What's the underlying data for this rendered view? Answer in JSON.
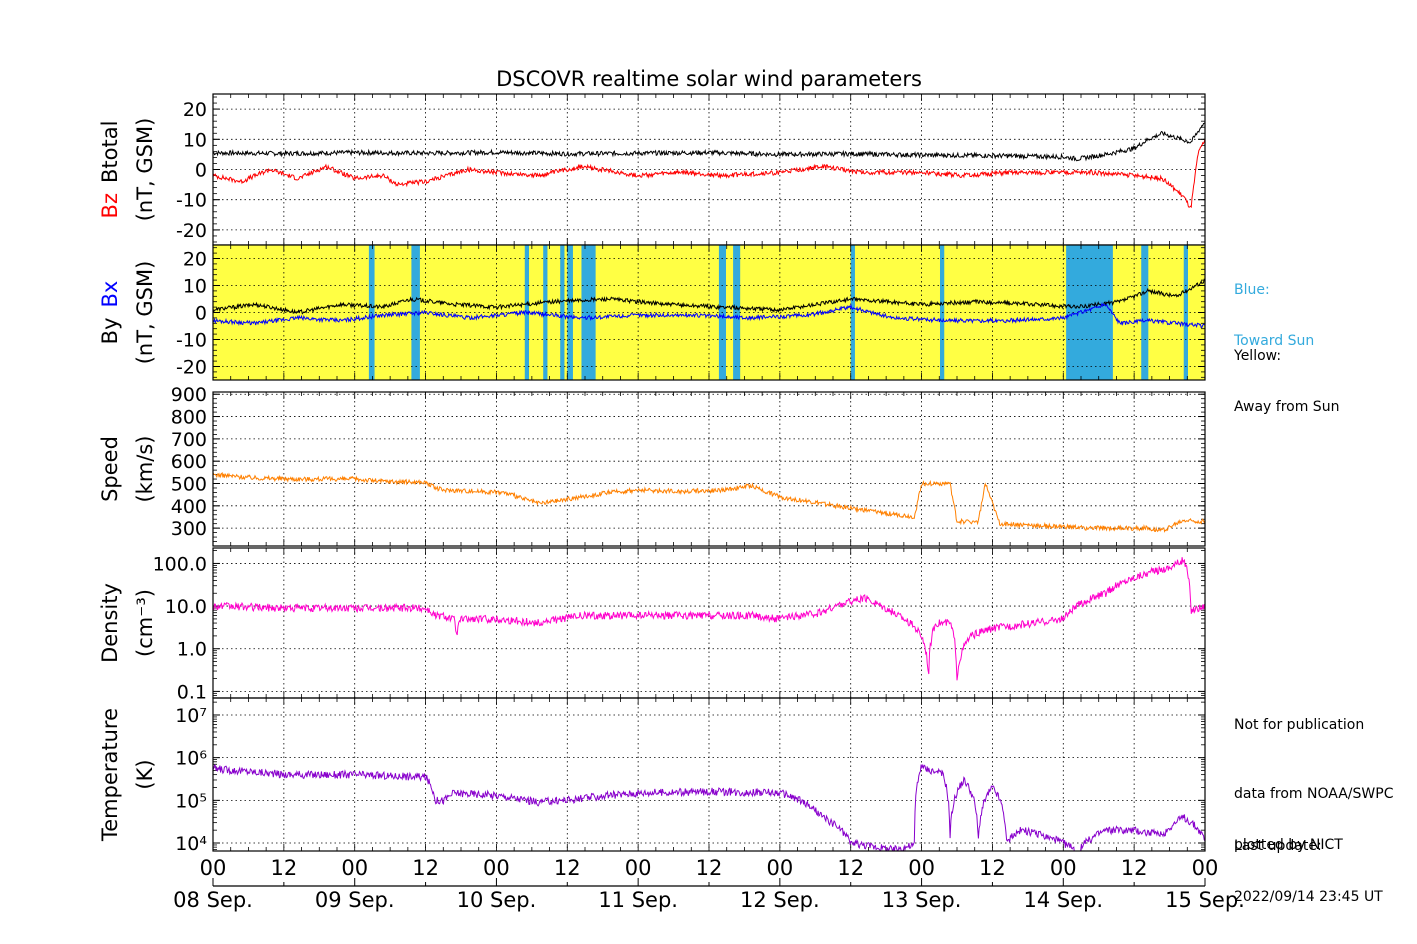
{
  "title": "DSCOVR realtime solar wind parameters",
  "colors": {
    "bz": "#ff0000",
    "btotal": "#000000",
    "bx": "#0000ff",
    "by": "#000000",
    "speed": "#ff8000",
    "density": "#ff00cc",
    "temperature": "#8800cc",
    "toward_sun": "#33aadd",
    "away_from_sun": "#ffff44"
  },
  "x_tick_labels": [
    "00",
    "12",
    "00",
    "12",
    "00",
    "12",
    "00",
    "12",
    "00",
    "12",
    "00",
    "12",
    "00",
    "12",
    "00"
  ],
  "date_labels": [
    "08 Sep.",
    "09 Sep.",
    "10 Sep.",
    "11 Sep.",
    "12 Sep.",
    "13 Sep.",
    "14 Sep.",
    "15 Sep."
  ],
  "legend": {
    "toward": [
      "Blue:",
      "Toward Sun"
    ],
    "away": [
      "Yellow:",
      "Away from Sun"
    ]
  },
  "notes": {
    "not_for_publication": "Not for publication",
    "source_1": "data from NOAA/SWPC",
    "source_2": "plotted by NICT",
    "update_label": "Last update:",
    "update_time": "2022/09/14 23:45 UT"
  },
  "chart_data": [
    {
      "type": "line",
      "panel": "magnetic field magnitude",
      "ylabel": [
        "Bz",
        "Btotal",
        "(nT, GSM)"
      ],
      "ylim": [
        -25,
        25
      ],
      "y_ticks": [
        -20,
        -10,
        0,
        10,
        20
      ],
      "x_unit": "days since 08 Sep. 00 UT",
      "xlim": [
        0,
        7
      ],
      "series": [
        {
          "name": "Btotal",
          "color": "#000000",
          "points": [
            [
              0,
              5.5
            ],
            [
              0.5,
              5.3
            ],
            [
              1,
              5.6
            ],
            [
              1.5,
              5.4
            ],
            [
              2,
              5.7
            ],
            [
              2.5,
              5.2
            ],
            [
              3,
              5.4
            ],
            [
              3.5,
              5.6
            ],
            [
              4,
              5.0
            ],
            [
              4.5,
              5.2
            ],
            [
              5,
              4.8
            ],
            [
              5.5,
              4.6
            ],
            [
              6,
              4.2
            ],
            [
              6.1,
              3.5
            ],
            [
              6.3,
              5
            ],
            [
              6.5,
              7
            ],
            [
              6.6,
              10
            ],
            [
              6.7,
              12
            ],
            [
              6.9,
              9
            ],
            [
              7,
              16
            ]
          ]
        },
        {
          "name": "Bz",
          "color": "#ff0000",
          "points": [
            [
              0,
              -2
            ],
            [
              0.2,
              -4
            ],
            [
              0.4,
              0
            ],
            [
              0.6,
              -3
            ],
            [
              0.8,
              1
            ],
            [
              1,
              -3
            ],
            [
              1.2,
              -2
            ],
            [
              1.3,
              -5
            ],
            [
              1.5,
              -4
            ],
            [
              1.8,
              0
            ],
            [
              2,
              -1
            ],
            [
              2.3,
              -2
            ],
            [
              2.6,
              1
            ],
            [
              3,
              -2
            ],
            [
              3.3,
              -1
            ],
            [
              3.6,
              -2
            ],
            [
              4,
              -1
            ],
            [
              4.3,
              1
            ],
            [
              4.6,
              -1
            ],
            [
              5,
              -1
            ],
            [
              5.3,
              -2
            ],
            [
              5.6,
              -1
            ],
            [
              6,
              -1
            ],
            [
              6.2,
              -1
            ],
            [
              6.5,
              -2
            ],
            [
              6.7,
              -3
            ],
            [
              6.85,
              -9
            ],
            [
              6.9,
              -13
            ],
            [
              6.95,
              5
            ],
            [
              7,
              10
            ]
          ]
        }
      ]
    },
    {
      "type": "line",
      "panel": "IMF components",
      "ylabel": [
        "By",
        "Bx",
        "(nT, GSM)"
      ],
      "ylim": [
        -25,
        25
      ],
      "y_ticks": [
        -20,
        -10,
        0,
        10,
        20
      ],
      "x_unit": "days since 08 Sep. 00 UT",
      "xlim": [
        0,
        7
      ],
      "background": "yellow = away from Sun, blue = toward Sun",
      "toward_sun_intervals": [
        [
          1.1,
          1.14
        ],
        [
          1.4,
          1.46
        ],
        [
          2.2,
          2.23
        ],
        [
          2.33,
          2.36
        ],
        [
          2.45,
          2.48
        ],
        [
          2.5,
          2.54
        ],
        [
          2.6,
          2.7
        ],
        [
          3.57,
          3.62
        ],
        [
          3.67,
          3.72
        ],
        [
          4.5,
          4.53
        ],
        [
          5.13,
          5.16
        ],
        [
          6.02,
          6.35
        ],
        [
          6.55,
          6.6
        ],
        [
          6.85,
          6.88
        ]
      ],
      "series": [
        {
          "name": "By",
          "color": "#000000",
          "points": [
            [
              0,
              1
            ],
            [
              0.3,
              3
            ],
            [
              0.6,
              0
            ],
            [
              0.9,
              3
            ],
            [
              1.2,
              2
            ],
            [
              1.4,
              5
            ],
            [
              1.7,
              3
            ],
            [
              2,
              2
            ],
            [
              2.4,
              4
            ],
            [
              2.8,
              5
            ],
            [
              3.2,
              3
            ],
            [
              3.6,
              2
            ],
            [
              4,
              1
            ],
            [
              4.5,
              5
            ],
            [
              5,
              3
            ],
            [
              5.4,
              4
            ],
            [
              5.8,
              3
            ],
            [
              6.1,
              2
            ],
            [
              6.4,
              4
            ],
            [
              6.6,
              8
            ],
            [
              6.8,
              6
            ],
            [
              7,
              12
            ]
          ]
        },
        {
          "name": "Bx",
          "color": "#0000ff",
          "points": [
            [
              0,
              -3
            ],
            [
              0.3,
              -4
            ],
            [
              0.6,
              -2
            ],
            [
              0.9,
              -3
            ],
            [
              1.2,
              -1
            ],
            [
              1.5,
              0
            ],
            [
              1.8,
              -2
            ],
            [
              2.2,
              0
            ],
            [
              2.6,
              -2
            ],
            [
              3,
              -1
            ],
            [
              3.4,
              -1
            ],
            [
              3.8,
              -2
            ],
            [
              4.2,
              -1
            ],
            [
              4.5,
              2
            ],
            [
              4.8,
              -2
            ],
            [
              5.2,
              -3
            ],
            [
              5.6,
              -3
            ],
            [
              6,
              -2
            ],
            [
              6.3,
              3
            ],
            [
              6.4,
              -4
            ],
            [
              6.6,
              -3
            ],
            [
              6.8,
              -4
            ],
            [
              7,
              -5
            ]
          ]
        }
      ]
    },
    {
      "type": "line",
      "panel": "solar wind speed",
      "ylabel": [
        "Speed",
        "(km/s)"
      ],
      "ylim": [
        220,
        910
      ],
      "y_ticks": [
        300,
        400,
        500,
        600,
        700,
        800,
        900
      ],
      "x_unit": "days since 08 Sep. 00 UT",
      "xlim": [
        0,
        7
      ],
      "series": [
        {
          "name": "Speed",
          "color": "#ff8000",
          "points": [
            [
              0,
              540
            ],
            [
              0.3,
              525
            ],
            [
              0.6,
              520
            ],
            [
              1,
              520
            ],
            [
              1.2,
              510
            ],
            [
              1.5,
              505
            ],
            [
              1.57,
              480
            ],
            [
              1.63,
              470
            ],
            [
              1.7,
              470
            ],
            [
              2.05,
              460
            ],
            [
              2.3,
              410
            ],
            [
              2.5,
              430
            ],
            [
              2.8,
              460
            ],
            [
              3,
              470
            ],
            [
              3.3,
              465
            ],
            [
              3.6,
              470
            ],
            [
              3.8,
              490
            ],
            [
              4.0,
              440
            ],
            [
              4.3,
              410
            ],
            [
              4.6,
              380
            ],
            [
              4.95,
              350
            ],
            [
              5.0,
              500
            ],
            [
              5.2,
              500
            ],
            [
              5.25,
              330
            ],
            [
              5.4,
              330
            ],
            [
              5.45,
              500
            ],
            [
              5.55,
              320
            ],
            [
              5.85,
              310
            ],
            [
              6.2,
              300
            ],
            [
              6.6,
              300
            ],
            [
              6.7,
              290
            ],
            [
              6.85,
              335
            ],
            [
              7,
              330
            ]
          ]
        }
      ]
    },
    {
      "type": "line",
      "panel": "proton density",
      "ylabel": [
        "Density",
        "(cm⁻³)"
      ],
      "log_scale": true,
      "ylim": [
        0.07,
        230
      ],
      "y_ticks": [
        0.1,
        1.0,
        10.0,
        100.0
      ],
      "y_tick_labels": [
        "0.1",
        "1.0",
        "10.0",
        "100.0"
      ],
      "x_unit": "days since 08 Sep. 00 UT",
      "xlim": [
        0,
        7
      ],
      "series": [
        {
          "name": "Density",
          "color": "#ff00cc",
          "points": [
            [
              0,
              10
            ],
            [
              0.5,
              9
            ],
            [
              1,
              9
            ],
            [
              1.5,
              9
            ],
            [
              1.57,
              6
            ],
            [
              1.63,
              6
            ],
            [
              1.7,
              5
            ],
            [
              1.72,
              2
            ],
            [
              1.75,
              5
            ],
            [
              2,
              5
            ],
            [
              2.3,
              4
            ],
            [
              2.6,
              6
            ],
            [
              3,
              6
            ],
            [
              3.5,
              6
            ],
            [
              3.8,
              6
            ],
            [
              4.0,
              5
            ],
            [
              4.3,
              7
            ],
            [
              4.5,
              13
            ],
            [
              4.6,
              15
            ],
            [
              4.8,
              7
            ],
            [
              5.0,
              2
            ],
            [
              5.05,
              0.2
            ],
            [
              5.1,
              4
            ],
            [
              5.2,
              4
            ],
            [
              5.25,
              0.2
            ],
            [
              5.35,
              2
            ],
            [
              5.5,
              3
            ],
            [
              5.8,
              4
            ],
            [
              6.0,
              5
            ],
            [
              6.1,
              10
            ],
            [
              6.3,
              20
            ],
            [
              6.6,
              60
            ],
            [
              6.75,
              80
            ],
            [
              6.85,
              120
            ],
            [
              6.9,
              8
            ],
            [
              7,
              10
            ]
          ]
        }
      ]
    },
    {
      "type": "line",
      "panel": "proton temperature",
      "ylabel": [
        "Temperature",
        "(K)"
      ],
      "log_scale": true,
      "ylim": [
        6500,
        25000000
      ],
      "y_ticks": [
        10000,
        100000,
        1000000,
        10000000
      ],
      "y_tick_labels": [
        "10⁴",
        "10⁵",
        "10⁶",
        "10⁷"
      ],
      "x_unit": "days since 08 Sep. 00 UT",
      "xlim": [
        0,
        7
      ],
      "series": [
        {
          "name": "Temperature",
          "color": "#8800cc",
          "points": [
            [
              0,
              550000
            ],
            [
              0.5,
              400000
            ],
            [
              1,
              400000
            ],
            [
              1.5,
              350000
            ],
            [
              1.57,
              100000
            ],
            [
              1.63,
              100000
            ],
            [
              1.7,
              150000
            ],
            [
              2,
              130000
            ],
            [
              2.3,
              90000
            ],
            [
              2.6,
              110000
            ],
            [
              3,
              150000
            ],
            [
              3.5,
              160000
            ],
            [
              4,
              150000
            ],
            [
              4.3,
              40000
            ],
            [
              4.5,
              10000
            ],
            [
              4.8,
              7000
            ],
            [
              4.95,
              9000
            ],
            [
              5.0,
              600000
            ],
            [
              5.15,
              400000
            ],
            [
              5.2,
              10000
            ],
            [
              5.3,
              300000
            ],
            [
              5.4,
              10000
            ],
            [
              5.5,
              200000
            ],
            [
              5.6,
              10000
            ],
            [
              5.7,
              20000
            ],
            [
              6.0,
              10000
            ],
            [
              6.1,
              6000
            ],
            [
              6.3,
              20000
            ],
            [
              6.5,
              20000
            ],
            [
              6.7,
              15000
            ],
            [
              6.85,
              40000
            ],
            [
              7,
              12000
            ]
          ]
        }
      ]
    }
  ]
}
